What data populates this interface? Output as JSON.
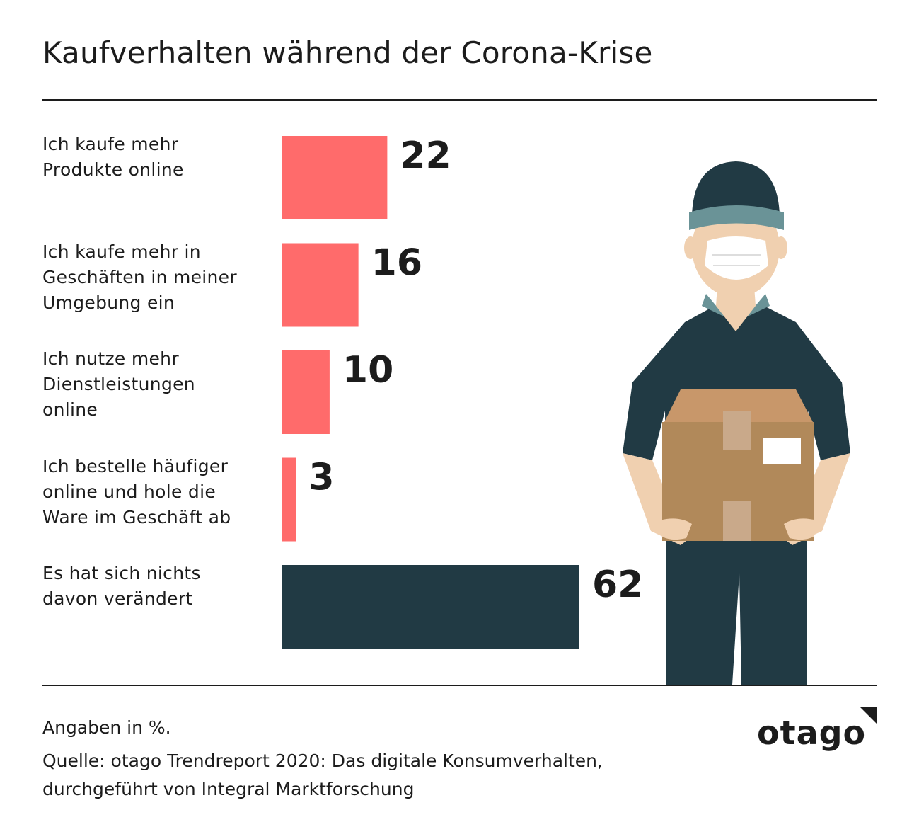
{
  "title": "Kaufverhalten während der Corona-Krise",
  "chart_data": {
    "type": "bar",
    "orientation": "horizontal",
    "categories": [
      "Ich kaufe mehr Produkte online",
      "Ich kaufe mehr in Geschäften in meiner Umgebung ein",
      "Ich nutze mehr Dienstleistungen online",
      "Ich bestelle häufiger online und hole die Ware im Geschäft ab",
      "Es hat sich nichts davon verändert"
    ],
    "category_lines": [
      [
        "Ich kaufe mehr",
        "Produkte online"
      ],
      [
        "Ich kaufe mehr in",
        "Geschäften in meiner",
        "Umgebung ein"
      ],
      [
        "Ich nutze mehr",
        "Dienstleistungen",
        "online"
      ],
      [
        "Ich bestelle häufiger",
        "online und hole die",
        "Ware im Geschäft ab"
      ],
      [
        "Es hat sich nichts",
        "davon verändert"
      ]
    ],
    "values": [
      22,
      16,
      10,
      3,
      62
    ],
    "value_labels": [
      "22",
      "16",
      "10",
      "3",
      "62"
    ],
    "bar_colors": [
      "#ff6b6b",
      "#ff6b6b",
      "#ff6b6b",
      "#ff6b6b",
      "#213a44"
    ],
    "unit": "%",
    "grid": false,
    "legend": "none"
  },
  "colors": {
    "accent": "#ff6b6b",
    "dark": "#213a44",
    "text": "#1c1c1c"
  },
  "footer": {
    "note": "Angaben in %.",
    "source_line1": "Quelle: otago Trendreport 2020: Das digitale Konsumverhalten,",
    "source_line2": "durchgeführt von Integral Marktforschung"
  },
  "brand": {
    "name": "otago"
  }
}
